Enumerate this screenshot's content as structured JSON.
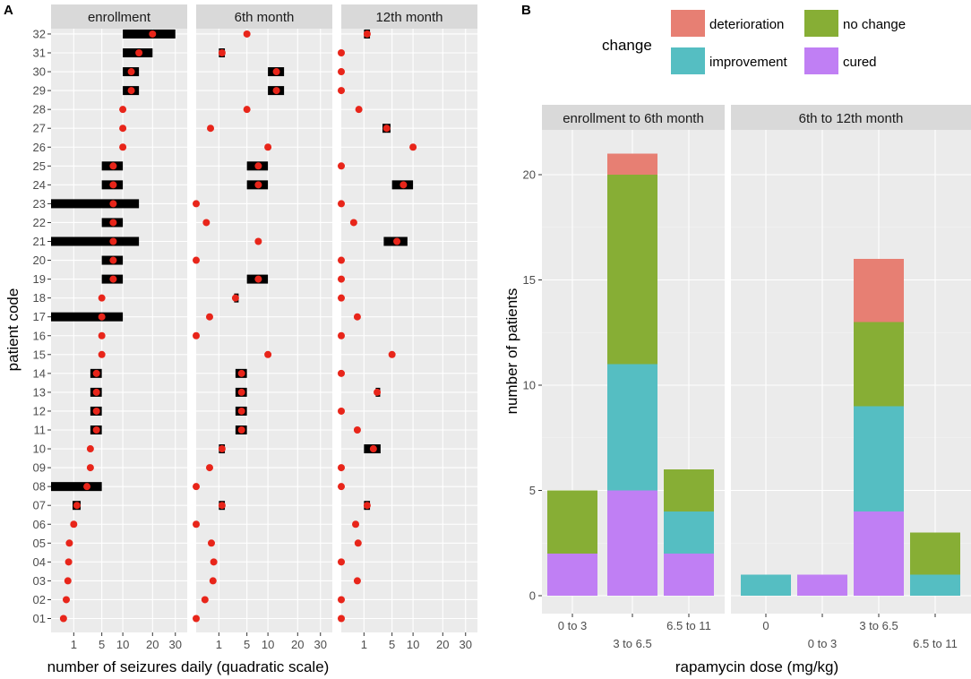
{
  "panel_labels": {
    "a": "A",
    "b": "B"
  },
  "colors": {
    "panel_bg": "#ebebeb",
    "strip_bg": "#d9d9d9",
    "grid": "#ffffff",
    "point": "#e8251a",
    "range_bar": "#000000",
    "deterioration": "#e77f73",
    "no_change": "#87ae35",
    "improvement": "#55bec2",
    "cured": "#c07ff4"
  },
  "chart_data": [
    {
      "id": "A",
      "type": "scatter",
      "panels": [
        "enrollment",
        "6th month",
        "12th month"
      ],
      "ylabel": "patient code",
      "xlabel": "number of seizures daily (quadratic scale)",
      "x_scale": "sqrt",
      "xlim": [
        0,
        36
      ],
      "x_ticks": [
        1,
        5,
        10,
        20,
        30
      ],
      "x_tick_labels": [
        "1",
        "5",
        "10",
        "20",
        "30"
      ],
      "patients": [
        "01",
        "02",
        "03",
        "04",
        "05",
        "06",
        "07",
        "08",
        "09",
        "10",
        "11",
        "12",
        "13",
        "14",
        "15",
        "16",
        "17",
        "18",
        "19",
        "20",
        "21",
        "22",
        "23",
        "24",
        "25",
        "26",
        "27",
        "28",
        "29",
        "30",
        "31",
        "32"
      ],
      "series": [
        {
          "name": "enrollment",
          "points": [
            {
              "patient": "01",
              "value": 0.3
            },
            {
              "patient": "02",
              "value": 0.45
            },
            {
              "patient": "03",
              "value": 0.55
            },
            {
              "patient": "04",
              "value": 0.6
            },
            {
              "patient": "05",
              "value": 0.65
            },
            {
              "patient": "06",
              "value": 1
            },
            {
              "patient": "07",
              "value": 1.3,
              "low": 0.9,
              "high": 1.7
            },
            {
              "patient": "08",
              "value": 2.5,
              "low": 0,
              "high": 5
            },
            {
              "patient": "09",
              "value": 3
            },
            {
              "patient": "10",
              "value": 3
            },
            {
              "patient": "11",
              "value": 4,
              "low": 3,
              "high": 5
            },
            {
              "patient": "12",
              "value": 4,
              "low": 3,
              "high": 5
            },
            {
              "patient": "13",
              "value": 4,
              "low": 3,
              "high": 5
            },
            {
              "patient": "14",
              "value": 4,
              "low": 3,
              "high": 5
            },
            {
              "patient": "15",
              "value": 5
            },
            {
              "patient": "16",
              "value": 5
            },
            {
              "patient": "17",
              "value": 5,
              "low": 0,
              "high": 10
            },
            {
              "patient": "18",
              "value": 5
            },
            {
              "patient": "19",
              "value": 7.5,
              "low": 5,
              "high": 10
            },
            {
              "patient": "20",
              "value": 7.5,
              "low": 5,
              "high": 10
            },
            {
              "patient": "21",
              "value": 7.5,
              "low": 0,
              "high": 15
            },
            {
              "patient": "22",
              "value": 7.5,
              "low": 5,
              "high": 10
            },
            {
              "patient": "23",
              "value": 7.5,
              "low": 0,
              "high": 15
            },
            {
              "patient": "24",
              "value": 7.5,
              "low": 5,
              "high": 10
            },
            {
              "patient": "25",
              "value": 7.5,
              "low": 5,
              "high": 10
            },
            {
              "patient": "26",
              "value": 10
            },
            {
              "patient": "27",
              "value": 10
            },
            {
              "patient": "28",
              "value": 10
            },
            {
              "patient": "29",
              "value": 12.5,
              "low": 10,
              "high": 15
            },
            {
              "patient": "30",
              "value": 12.5,
              "low": 10,
              "high": 15
            },
            {
              "patient": "31",
              "value": 15,
              "low": 10,
              "high": 20
            },
            {
              "patient": "32",
              "value": 20,
              "low": 10,
              "high": 30
            }
          ]
        },
        {
          "name": "6th month",
          "points": [
            {
              "patient": "01",
              "value": 0
            },
            {
              "patient": "02",
              "value": 0.15
            },
            {
              "patient": "03",
              "value": 0.55
            },
            {
              "patient": "04",
              "value": 0.6
            },
            {
              "patient": "05",
              "value": 0.45
            },
            {
              "patient": "06",
              "value": 0
            },
            {
              "patient": "07",
              "value": 1.3,
              "low": 1,
              "high": 1.6
            },
            {
              "patient": "08",
              "value": 0
            },
            {
              "patient": "09",
              "value": 0.35
            },
            {
              "patient": "10",
              "value": 1.3,
              "low": 1,
              "high": 1.6
            },
            {
              "patient": "11",
              "value": 4,
              "low": 3,
              "high": 5
            },
            {
              "patient": "12",
              "value": 4,
              "low": 3,
              "high": 5
            },
            {
              "patient": "13",
              "value": 4,
              "low": 3,
              "high": 5
            },
            {
              "patient": "14",
              "value": 4,
              "low": 3,
              "high": 5
            },
            {
              "patient": "15",
              "value": 10
            },
            {
              "patient": "16",
              "value": 0
            },
            {
              "patient": "17",
              "value": 0.35
            },
            {
              "patient": "18",
              "value": 3,
              "low": 2.8,
              "high": 3.2
            },
            {
              "patient": "19",
              "value": 7.5,
              "low": 5,
              "high": 10
            },
            {
              "patient": "20",
              "value": 0
            },
            {
              "patient": "21",
              "value": 7.5
            },
            {
              "patient": "22",
              "value": 0.2
            },
            {
              "patient": "23",
              "value": 0
            },
            {
              "patient": "24",
              "value": 7.5,
              "low": 5,
              "high": 10
            },
            {
              "patient": "25",
              "value": 7.5,
              "low": 5,
              "high": 10
            },
            {
              "patient": "26",
              "value": 10
            },
            {
              "patient": "27",
              "value": 0.4
            },
            {
              "patient": "28",
              "value": 5
            },
            {
              "patient": "29",
              "value": 12.5,
              "low": 10,
              "high": 15
            },
            {
              "patient": "30",
              "value": 12.5,
              "low": 10,
              "high": 15
            },
            {
              "patient": "31",
              "value": 1.3,
              "low": 1,
              "high": 1.6
            },
            {
              "patient": "32",
              "value": 5
            }
          ]
        },
        {
          "name": "12th month",
          "points": [
            {
              "patient": "01",
              "value": 0
            },
            {
              "patient": "02",
              "value": 0
            },
            {
              "patient": "03",
              "value": 0.5
            },
            {
              "patient": "04",
              "value": 0
            },
            {
              "patient": "05",
              "value": 0.55
            },
            {
              "patient": "06",
              "value": 0.4
            },
            {
              "patient": "07",
              "value": 1.3,
              "low": 1,
              "high": 1.6
            },
            {
              "patient": "08",
              "value": 0
            },
            {
              "patient": "09",
              "value": 0
            },
            {
              "patient": "10",
              "value": 2,
              "low": 1,
              "high": 3
            },
            {
              "patient": "11",
              "value": 0.5
            },
            {
              "patient": "12",
              "value": 0
            },
            {
              "patient": "13",
              "value": 2.5,
              "low": 2.3,
              "high": 2.7
            },
            {
              "patient": "14",
              "value": 0
            },
            {
              "patient": "15",
              "value": 5
            },
            {
              "patient": "16",
              "value": 0
            },
            {
              "patient": "17",
              "value": 0.5
            },
            {
              "patient": "18",
              "value": 0
            },
            {
              "patient": "19",
              "value": 0
            },
            {
              "patient": "20",
              "value": 0
            },
            {
              "patient": "21",
              "value": 6,
              "low": 3.5,
              "high": 8.5
            },
            {
              "patient": "22",
              "value": 0.3
            },
            {
              "patient": "23",
              "value": 0
            },
            {
              "patient": "24",
              "value": 7.5,
              "low": 5,
              "high": 10
            },
            {
              "patient": "25",
              "value": 0
            },
            {
              "patient": "26",
              "value": 10
            },
            {
              "patient": "27",
              "value": 4,
              "low": 3.3,
              "high": 4.7
            },
            {
              "patient": "28",
              "value": 0.6
            },
            {
              "patient": "29",
              "value": 0
            },
            {
              "patient": "30",
              "value": 0
            },
            {
              "patient": "31",
              "value": 0
            },
            {
              "patient": "32",
              "value": 1.3,
              "low": 1,
              "high": 1.6
            }
          ]
        }
      ]
    },
    {
      "id": "B",
      "type": "bar",
      "stacked": true,
      "ylabel": "number of patients",
      "xlabel": "rapamycin dose (mg/kg)",
      "ylim": [
        0,
        22
      ],
      "y_ticks": [
        0,
        5,
        10,
        15,
        20
      ],
      "y_tick_labels": [
        "0",
        "5",
        "10",
        "15",
        "20"
      ],
      "legend": {
        "title": "change",
        "position": "top",
        "entries": [
          {
            "key": "deterioration",
            "label": "deterioration"
          },
          {
            "key": "no_change",
            "label": "no change"
          },
          {
            "key": "improvement",
            "label": "improvement"
          },
          {
            "key": "cured",
            "label": "cured"
          }
        ]
      },
      "stack_order": [
        "cured",
        "improvement",
        "no_change",
        "deterioration"
      ],
      "panels": [
        {
          "name": "enrollment to 6th month",
          "categories": [
            "0 to 3",
            "3 to 6.5",
            "6.5 to 11"
          ],
          "series": [
            {
              "name": "cured",
              "values": [
                2,
                5,
                2
              ]
            },
            {
              "name": "improvement",
              "values": [
                0,
                6,
                2
              ]
            },
            {
              "name": "no_change",
              "values": [
                3,
                9,
                2
              ]
            },
            {
              "name": "deterioration",
              "values": [
                0,
                1,
                0
              ]
            }
          ]
        },
        {
          "name": "6th to 12th month",
          "categories": [
            "0",
            "0 to 3",
            "3 to 6.5",
            "6.5 to 11"
          ],
          "series": [
            {
              "name": "cured",
              "values": [
                0,
                1,
                4,
                0
              ]
            },
            {
              "name": "improvement",
              "values": [
                1,
                0,
                5,
                1
              ]
            },
            {
              "name": "no_change",
              "values": [
                0,
                0,
                4,
                2
              ]
            },
            {
              "name": "deterioration",
              "values": [
                0,
                0,
                3,
                0
              ]
            }
          ]
        }
      ]
    }
  ]
}
